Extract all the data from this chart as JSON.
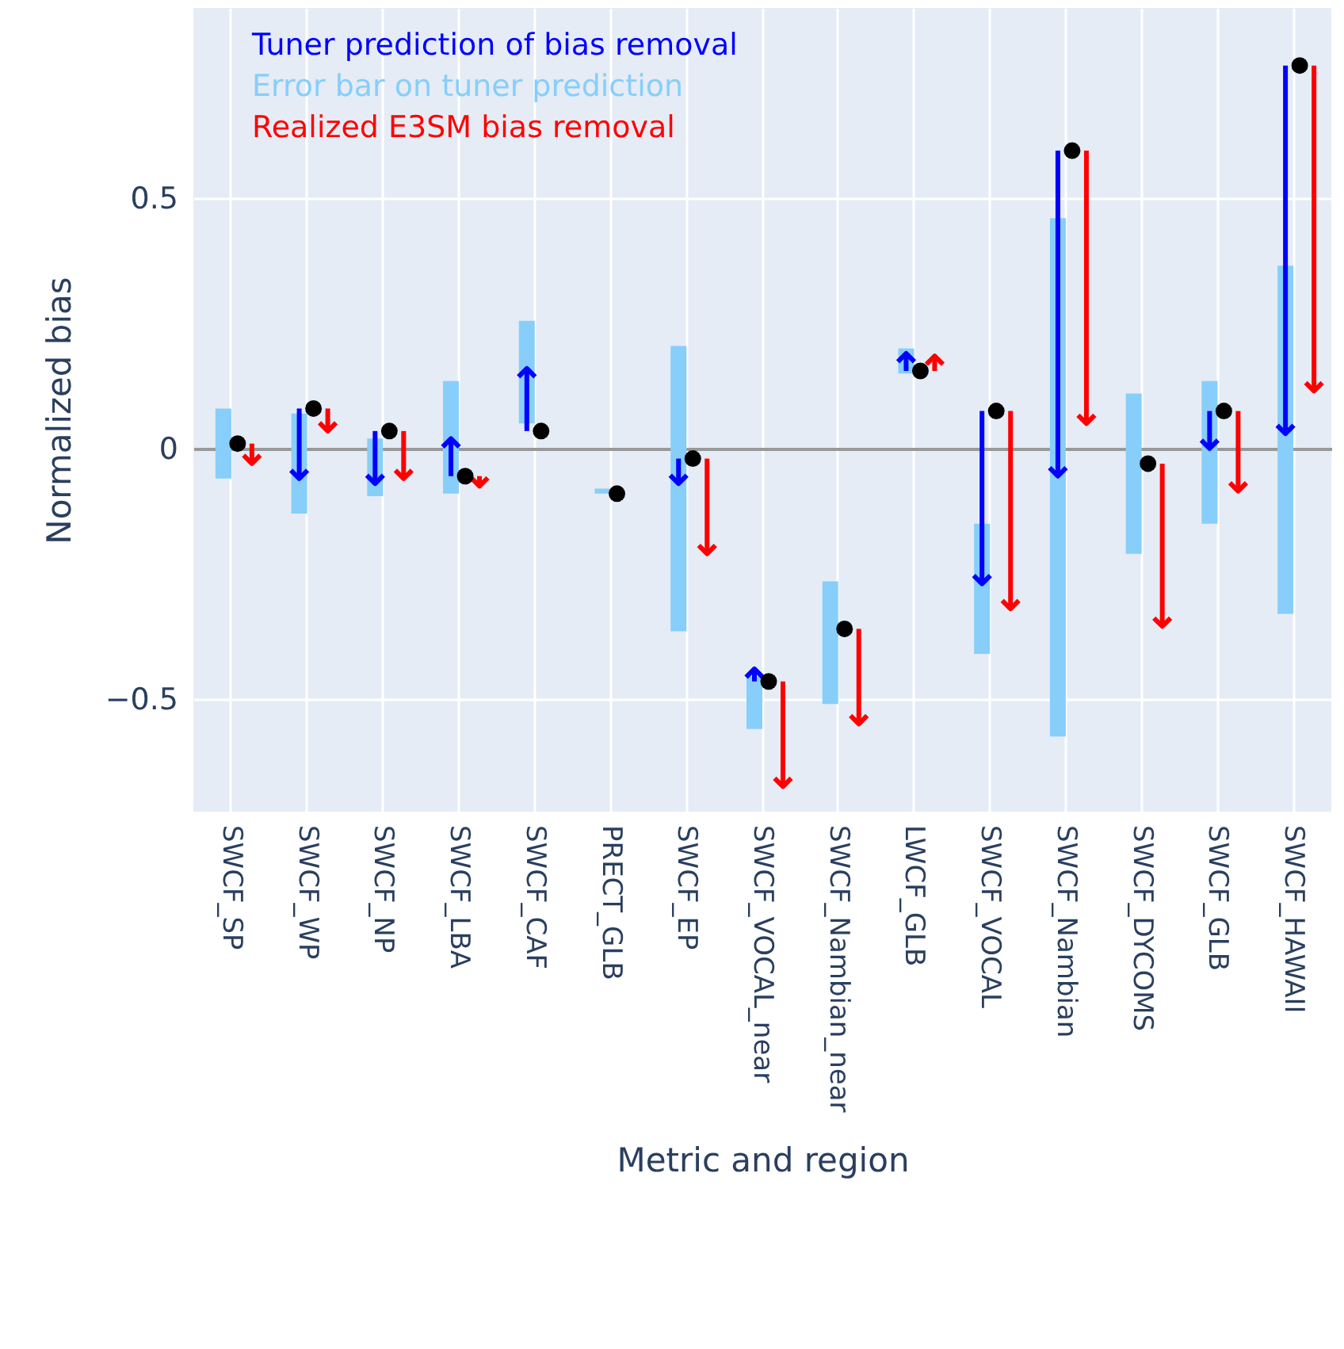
{
  "chart_data": {
    "type": "bar",
    "xlabel": "Metric and region",
    "ylabel": "Normalized bias",
    "categories": [
      "SWCF_SP",
      "SWCF_WP",
      "SWCF_NP",
      "SWCF_LBA",
      "SWCF_CAF",
      "PRECT_GLB",
      "SWCF_EP",
      "SWCF_VOCAL_near",
      "SWCF_Nambian_near",
      "LWCF_GLB",
      "SWCF_VOCAL",
      "SWCF_Nambian",
      "SWCF_DYCOMS",
      "SWCF_GLB",
      "SWCF_HAWAII"
    ],
    "series": [
      {
        "name": "Tuner prediction of bias removal",
        "marker": "triangle",
        "color": "#0000ff",
        "base": [
          null,
          0.08,
          0.035,
          -0.055,
          0.035,
          null,
          -0.02,
          -0.465,
          null,
          0.155,
          0.075,
          0.595,
          null,
          0.075,
          0.765
        ],
        "values": [
          null,
          -0.14,
          -0.105,
          0.075,
          0.125,
          null,
          -0.05,
          0.025,
          null,
          0.035,
          -0.345,
          -0.65,
          null,
          -0.075,
          -0.735
        ]
      },
      {
        "name": "Error bar on tuner prediction",
        "color": "#87cefa",
        "base": [
          -0.06,
          -0.13,
          -0.095,
          -0.09,
          0.05,
          -0.09,
          -0.365,
          -0.56,
          -0.51,
          0.15,
          -0.41,
          -0.575,
          -0.21,
          -0.15,
          -0.33
        ],
        "values": [
          0.14,
          0.2,
          0.115,
          0.225,
          0.205,
          0.01,
          0.57,
          0.105,
          0.245,
          0.05,
          0.26,
          1.035,
          0.32,
          0.285,
          0.695
        ]
      },
      {
        "name": "Realized E3SM bias removal",
        "marker": "triangle",
        "color": "#ff0000",
        "base": [
          0.01,
          0.08,
          0.035,
          -0.055,
          null,
          null,
          -0.02,
          -0.465,
          -0.36,
          0.155,
          0.075,
          0.595,
          -0.03,
          0.075,
          0.765
        ],
        "values": [
          -0.04,
          -0.045,
          -0.095,
          -0.02,
          null,
          null,
          -0.19,
          -0.21,
          -0.19,
          0.03,
          -0.395,
          -0.545,
          -0.325,
          -0.16,
          -0.65
        ]
      },
      {
        "type": "scatter",
        "marker": "circle",
        "color": "#000000",
        "values": [
          0.01,
          0.08,
          0.035,
          -0.055,
          0.035,
          -0.09,
          -0.02,
          -0.465,
          -0.36,
          0.155,
          0.075,
          0.595,
          -0.03,
          0.075,
          0.765
        ]
      }
    ],
    "ylim": [
      -0.725,
      0.88
    ],
    "yticks": [
      {
        "value": -0.5,
        "label": "−0.5"
      },
      0,
      0.5
    ],
    "grid": true,
    "legend": "top left"
  }
}
